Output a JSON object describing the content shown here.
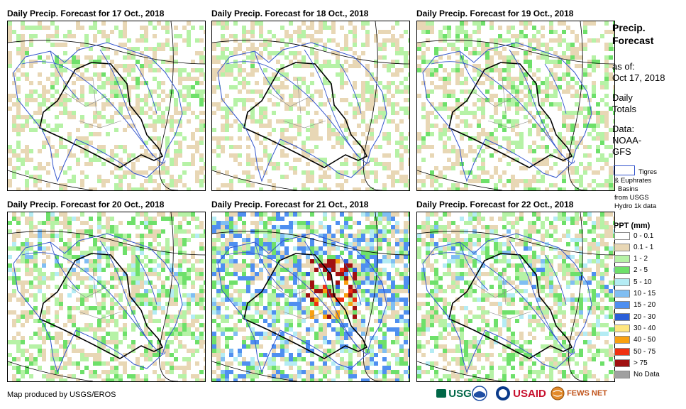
{
  "panels": [
    {
      "title": "Daily Precip. Forecast for 17 Oct., 2018",
      "intensity": 0.35,
      "seed": 17
    },
    {
      "title": "Daily Precip. Forecast for 18 Oct., 2018",
      "intensity": 0.3,
      "seed": 18
    },
    {
      "title": "Daily Precip. Forecast for 19 Oct., 2018",
      "intensity": 0.45,
      "seed": 19
    },
    {
      "title": "Daily Precip. Forecast for 20 Oct., 2018",
      "intensity": 0.6,
      "seed": 20
    },
    {
      "title": "Daily Precip. Forecast for 21 Oct., 2018",
      "intensity": 1.0,
      "seed": 21
    },
    {
      "title": "Daily Precip. Forecast for 22 Oct., 2018",
      "intensity": 0.65,
      "seed": 22
    }
  ],
  "sidebar": {
    "title_line1": "Precip.",
    "title_line2": "Forecast",
    "asof_label": "as of:",
    "asof_date": "Oct 17, 2018",
    "daily_line1": "Daily",
    "daily_line2": "Totals",
    "data_line1": "Data:",
    "data_line2": "NOAA-",
    "data_line3": "GFS",
    "basin_line1": "Tigres",
    "basin_line2": "& Euphrates",
    "basin_line3": "Basins",
    "basin_line4": "from USGS",
    "basin_line5": "Hydro 1k data"
  },
  "legend": {
    "title": "PPT (mm)",
    "items": [
      {
        "label": "0 - 0.1",
        "color": "#ffffff"
      },
      {
        "label": "0.1 - 1",
        "color": "#e8d7b5"
      },
      {
        "label": "1 - 2",
        "color": "#b6f2a6"
      },
      {
        "label": "2 - 5",
        "color": "#6ee06a"
      },
      {
        "label": "5 - 10",
        "color": "#b4ecf4"
      },
      {
        "label": "10 - 15",
        "color": "#80bef2"
      },
      {
        "label": "15 - 20",
        "color": "#4f8ff0"
      },
      {
        "label": "20 - 30",
        "color": "#2a5ed8"
      },
      {
        "label": "30 - 40",
        "color": "#ffe680"
      },
      {
        "label": "40 - 50",
        "color": "#f8a010"
      },
      {
        "label": "50 - 75",
        "color": "#f03010"
      },
      {
        "label": "> 75",
        "color": "#a01010"
      },
      {
        "label": "No Data",
        "color": "#a0a0a0"
      }
    ]
  },
  "credit": "Map produced by USGS/EROS",
  "logos": {
    "usgs": "USGS",
    "usaid": "USAID",
    "fewsnet": "FEWS NET"
  }
}
